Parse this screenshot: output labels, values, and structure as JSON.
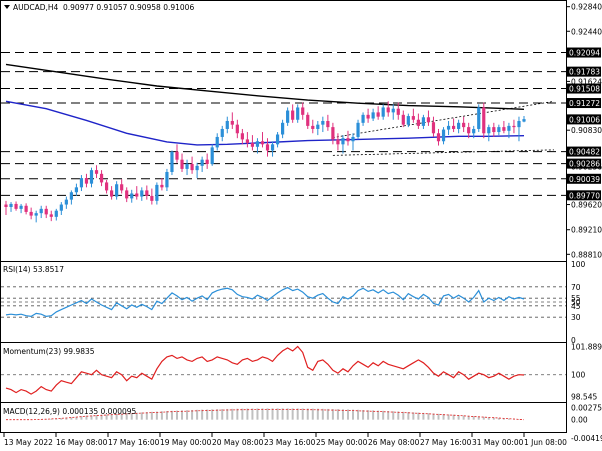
{
  "header": {
    "symbol_label": "AUDCAD,H4",
    "ohlc": "0.90977 0.91057 0.90958 0.91006"
  },
  "colors": {
    "bull": "#2b8fd8",
    "bear": "#e0317e",
    "ema_long": "#000000",
    "ema_short": "#1f24c8",
    "rsi": "#2b8fd8",
    "momentum": "#e02020",
    "macd": "#e02020"
  },
  "chart_data": [
    {
      "type": "candlestick",
      "panel": "price",
      "ylim": [
        0.8875,
        0.929
      ],
      "axis_ticks": [
        "0.92840",
        "0.92440",
        "0.91624",
        "0.90830",
        "0.90236",
        "0.89620",
        "0.89210",
        "0.88810"
      ],
      "level_tags": [
        {
          "label": "0.92094",
          "value": 0.92094
        },
        {
          "label": "0.91783",
          "value": 0.91783
        },
        {
          "label": "0.91508",
          "value": 0.91508
        },
        {
          "label": "0.91272",
          "value": 0.91272
        },
        {
          "label": "0.91006",
          "value": 0.91006,
          "current": true
        },
        {
          "label": "0.90482",
          "value": 0.90482
        },
        {
          "label": "0.90286",
          "value": 0.90286
        },
        {
          "label": "0.90039",
          "value": 0.90039
        },
        {
          "label": "0.89770",
          "value": 0.8977
        }
      ],
      "dashed_levels": [
        0.92094,
        0.91783,
        0.91508,
        0.91272,
        0.90482,
        0.90286,
        0.90039,
        0.8977
      ],
      "trendlines": [
        {
          "from": [
            65,
            0.9071
          ],
          "to": [
            103,
            0.913
          ],
          "style": "dotted"
        },
        {
          "from": [
            65,
            0.9042
          ],
          "to": [
            103,
            0.9051
          ],
          "style": "dotted"
        }
      ],
      "ema_long": [
        [
          0,
          0.919
        ],
        [
          10,
          0.9178
        ],
        [
          20,
          0.9166
        ],
        [
          30,
          0.9155
        ],
        [
          40,
          0.9147
        ],
        [
          50,
          0.9139
        ],
        [
          60,
          0.9132
        ],
        [
          70,
          0.9127
        ],
        [
          80,
          0.9123
        ],
        [
          90,
          0.9121
        ],
        [
          100,
          0.9118
        ],
        [
          103,
          0.9117
        ]
      ],
      "ema_short": [
        [
          0,
          0.913
        ],
        [
          8,
          0.9118
        ],
        [
          16,
          0.9099
        ],
        [
          24,
          0.9078
        ],
        [
          32,
          0.9064
        ],
        [
          38,
          0.9059
        ],
        [
          44,
          0.906
        ],
        [
          52,
          0.9063
        ],
        [
          60,
          0.9066
        ],
        [
          70,
          0.9068
        ],
        [
          80,
          0.907
        ],
        [
          90,
          0.9073
        ],
        [
          96,
          0.9073
        ],
        [
          103,
          0.9074
        ]
      ],
      "candles": [
        [
          0.8962,
          0.8968,
          0.8945,
          0.8958
        ],
        [
          0.8958,
          0.8966,
          0.895,
          0.8963
        ],
        [
          0.8963,
          0.8967,
          0.8952,
          0.8955
        ],
        [
          0.8955,
          0.8963,
          0.8948,
          0.896
        ],
        [
          0.896,
          0.8964,
          0.8946,
          0.895
        ],
        [
          0.895,
          0.8957,
          0.8938,
          0.8944
        ],
        [
          0.8944,
          0.8952,
          0.8933,
          0.8948
        ],
        [
          0.8948,
          0.896,
          0.894,
          0.8955
        ],
        [
          0.8955,
          0.896,
          0.894,
          0.8946
        ],
        [
          0.8946,
          0.8952,
          0.8935,
          0.8942
        ],
        [
          0.8942,
          0.8955,
          0.8936,
          0.8952
        ],
        [
          0.8952,
          0.8966,
          0.8945,
          0.8962
        ],
        [
          0.8962,
          0.8975,
          0.8955,
          0.897
        ],
        [
          0.897,
          0.8985,
          0.8962,
          0.8982
        ],
        [
          0.8982,
          0.8996,
          0.8976,
          0.899
        ],
        [
          0.899,
          0.901,
          0.8984,
          0.9005
        ],
        [
          0.9005,
          0.9012,
          0.899,
          0.8996
        ],
        [
          0.8996,
          0.9022,
          0.899,
          0.9018
        ],
        [
          0.9018,
          0.9026,
          0.9005,
          0.9012
        ],
        [
          0.9012,
          0.9018,
          0.8992,
          0.8998
        ],
        [
          0.8998,
          0.9002,
          0.898,
          0.8985
        ],
        [
          0.8985,
          0.8992,
          0.897,
          0.8975
        ],
        [
          0.8975,
          0.9,
          0.897,
          0.8995
        ],
        [
          0.8995,
          0.9003,
          0.898,
          0.8985
        ],
        [
          0.8985,
          0.899,
          0.8966,
          0.8972
        ],
        [
          0.8972,
          0.8986,
          0.8965,
          0.898
        ],
        [
          0.898,
          0.8992,
          0.897,
          0.8975
        ],
        [
          0.8975,
          0.899,
          0.8968,
          0.8985
        ],
        [
          0.8985,
          0.8993,
          0.897,
          0.8976
        ],
        [
          0.8976,
          0.8988,
          0.8962,
          0.8968
        ],
        [
          0.8968,
          0.8998,
          0.8962,
          0.8994
        ],
        [
          0.8994,
          0.9005,
          0.8985,
          0.899
        ],
        [
          0.899,
          0.902,
          0.8984,
          0.9015
        ],
        [
          0.9015,
          0.905,
          0.901,
          0.9048
        ],
        [
          0.9048,
          0.906,
          0.903,
          0.9035
        ],
        [
          0.9035,
          0.9045,
          0.9015,
          0.902
        ],
        [
          0.902,
          0.9035,
          0.901,
          0.9028
        ],
        [
          0.9028,
          0.904,
          0.9012,
          0.9018
        ],
        [
          0.9018,
          0.903,
          0.9005,
          0.9025
        ],
        [
          0.9025,
          0.904,
          0.9015,
          0.9035
        ],
        [
          0.9035,
          0.9045,
          0.902,
          0.9028
        ],
        [
          0.9028,
          0.906,
          0.9025,
          0.9055
        ],
        [
          0.9055,
          0.9078,
          0.905,
          0.9072
        ],
        [
          0.9072,
          0.909,
          0.9065,
          0.9085
        ],
        [
          0.9085,
          0.9105,
          0.9078,
          0.9098
        ],
        [
          0.9098,
          0.9112,
          0.9085,
          0.9092
        ],
        [
          0.9092,
          0.91,
          0.907,
          0.9078
        ],
        [
          0.9078,
          0.9085,
          0.906,
          0.9068
        ],
        [
          0.9068,
          0.908,
          0.9055,
          0.9062
        ],
        [
          0.9062,
          0.9075,
          0.905,
          0.9056
        ],
        [
          0.9056,
          0.907,
          0.9045,
          0.9065
        ],
        [
          0.9065,
          0.908,
          0.9055,
          0.906
        ],
        [
          0.906,
          0.907,
          0.904,
          0.905
        ],
        [
          0.905,
          0.9065,
          0.904,
          0.906
        ],
        [
          0.906,
          0.908,
          0.9055,
          0.9076
        ],
        [
          0.9076,
          0.91,
          0.907,
          0.9095
        ],
        [
          0.9095,
          0.912,
          0.909,
          0.9115
        ],
        [
          0.9115,
          0.9125,
          0.9095,
          0.91
        ],
        [
          0.91,
          0.9125,
          0.9095,
          0.912
        ],
        [
          0.912,
          0.9128,
          0.91,
          0.9108
        ],
        [
          0.9108,
          0.9112,
          0.9085,
          0.909
        ],
        [
          0.909,
          0.91,
          0.9078,
          0.9085
        ],
        [
          0.9085,
          0.9098,
          0.9075,
          0.9092
        ],
        [
          0.9092,
          0.9105,
          0.908,
          0.9098
        ],
        [
          0.9098,
          0.9108,
          0.9082,
          0.9088
        ],
        [
          0.9088,
          0.9095,
          0.906,
          0.9068
        ],
        [
          0.9068,
          0.9078,
          0.905,
          0.906
        ],
        [
          0.906,
          0.9075,
          0.9045,
          0.907
        ],
        [
          0.907,
          0.9082,
          0.9058,
          0.9065
        ],
        [
          0.9065,
          0.9078,
          0.905,
          0.9072
        ],
        [
          0.9072,
          0.91,
          0.9068,
          0.9095
        ],
        [
          0.9095,
          0.9112,
          0.909,
          0.9108
        ],
        [
          0.9108,
          0.9118,
          0.9095,
          0.9102
        ],
        [
          0.9102,
          0.9118,
          0.9098,
          0.9112
        ],
        [
          0.9112,
          0.9122,
          0.91,
          0.9105
        ],
        [
          0.9105,
          0.9125,
          0.91,
          0.912
        ],
        [
          0.912,
          0.913,
          0.9105,
          0.9112
        ],
        [
          0.9112,
          0.9125,
          0.91,
          0.9118
        ],
        [
          0.9118,
          0.9128,
          0.91,
          0.9108
        ],
        [
          0.9108,
          0.9115,
          0.9088,
          0.9092
        ],
        [
          0.9092,
          0.911,
          0.9088,
          0.9106
        ],
        [
          0.9106,
          0.9118,
          0.9095,
          0.91
        ],
        [
          0.91,
          0.911,
          0.9085,
          0.909
        ],
        [
          0.909,
          0.9108,
          0.9085,
          0.9104
        ],
        [
          0.9104,
          0.9115,
          0.909,
          0.9096
        ],
        [
          0.9096,
          0.9105,
          0.9072,
          0.9078
        ],
        [
          0.9078,
          0.9085,
          0.9058,
          0.9065
        ],
        [
          0.9065,
          0.9088,
          0.906,
          0.9084
        ],
        [
          0.9084,
          0.9098,
          0.9075,
          0.909
        ],
        [
          0.909,
          0.9102,
          0.908,
          0.9085
        ],
        [
          0.9085,
          0.91,
          0.9078,
          0.9095
        ],
        [
          0.9095,
          0.9105,
          0.908,
          0.9088
        ],
        [
          0.9088,
          0.9095,
          0.907,
          0.9078
        ],
        [
          0.9078,
          0.909,
          0.907,
          0.9085
        ],
        [
          0.9085,
          0.9125,
          0.908,
          0.912
        ],
        [
          0.912,
          0.9128,
          0.907,
          0.9078
        ],
        [
          0.9078,
          0.9092,
          0.9065,
          0.9088
        ],
        [
          0.9088,
          0.9095,
          0.9072,
          0.908
        ],
        [
          0.908,
          0.9092,
          0.9075,
          0.9088
        ],
        [
          0.9088,
          0.9098,
          0.9078,
          0.9082
        ],
        [
          0.9082,
          0.9095,
          0.907,
          0.909
        ],
        [
          0.909,
          0.91,
          0.9078,
          0.9088
        ],
        [
          0.9088,
          0.9105,
          0.9065,
          0.9098
        ],
        [
          0.9097,
          0.9106,
          0.9096,
          0.9101
        ]
      ]
    },
    {
      "type": "line",
      "panel": "rsi",
      "title": "RSI(14) 53.8517",
      "ylim": [
        0,
        100
      ],
      "ticks": [
        "100",
        "70",
        "55",
        "50",
        "45",
        "30",
        "0"
      ],
      "levels": [
        30,
        45,
        50,
        55,
        70
      ],
      "values": [
        33,
        34,
        33,
        34,
        32,
        31,
        35,
        34,
        31,
        32,
        37,
        40,
        43,
        46,
        49,
        52,
        48,
        54,
        50,
        46,
        43,
        40,
        49,
        45,
        41,
        46,
        43,
        47,
        44,
        40,
        51,
        48,
        55,
        62,
        58,
        53,
        56,
        51,
        55,
        58,
        53,
        62,
        65,
        67,
        68,
        66,
        60,
        57,
        56,
        54,
        59,
        56,
        52,
        57,
        62,
        66,
        69,
        65,
        67,
        63,
        57,
        55,
        59,
        61,
        55,
        50,
        48,
        57,
        54,
        58,
        65,
        68,
        64,
        66,
        62,
        66,
        61,
        63,
        59,
        53,
        61,
        57,
        54,
        60,
        56,
        48,
        46,
        58,
        60,
        55,
        59,
        55,
        50,
        56,
        65,
        50,
        55,
        52,
        56,
        52,
        57,
        54,
        56,
        54
      ]
    },
    {
      "type": "line",
      "panel": "momentum",
      "title": "Momentum(23) 99.9835",
      "ylim": [
        98.3,
        102.0
      ],
      "ticks": [
        "101.8892",
        "100",
        "98.545"
      ],
      "levels": [
        100
      ],
      "values": [
        99.1,
        99.0,
        98.8,
        99.0,
        98.9,
        98.7,
        98.9,
        99.2,
        99.0,
        98.9,
        99.3,
        99.6,
        99.5,
        99.4,
        99.8,
        100.2,
        100.1,
        100.0,
        100.3,
        100.0,
        99.9,
        99.8,
        100.2,
        100.0,
        99.6,
        99.9,
        99.8,
        100.1,
        99.9,
        99.7,
        100.4,
        100.9,
        101.2,
        101.3,
        101.1,
        101.2,
        101.0,
        100.9,
        101.1,
        101.2,
        100.9,
        101.0,
        101.2,
        101.1,
        101.0,
        100.8,
        100.7,
        101.0,
        101.1,
        100.9,
        101.0,
        101.2,
        101.1,
        100.9,
        101.3,
        101.6,
        101.8,
        101.6,
        101.9,
        101.5,
        100.5,
        100.3,
        100.9,
        101.0,
        100.7,
        100.3,
        100.1,
        100.4,
        100.2,
        100.6,
        100.9,
        100.7,
        100.5,
        100.8,
        100.6,
        100.9,
        100.7,
        100.6,
        100.5,
        100.4,
        100.6,
        100.8,
        101.0,
        100.8,
        100.5,
        100.1,
        99.9,
        100.2,
        100.0,
        99.8,
        100.2,
        100.0,
        99.7,
        99.9,
        100.1,
        100.0,
        99.8,
        99.9,
        100.1,
        99.9,
        99.7,
        99.9,
        100.0,
        99.98
      ]
    },
    {
      "type": "histogram",
      "panel": "macd",
      "title": "MACD(12,26,9) 0.000135 0.000095",
      "ylim": [
        -0.0026,
        0.0036
      ],
      "ticks": [
        "0.002756",
        "0.00",
        "-0.00419"
      ]
    }
  ],
  "x_axis_labels": [
    "13 May 2022",
    "16 May 08:00",
    "17 May 16:00",
    "19 May 00:00",
    "20 May 08:00",
    "23 May 16:00",
    "25 May 00:00",
    "26 May 08:00",
    "27 May 16:00",
    "31 May 00:00",
    "1 Jun 08:00"
  ]
}
